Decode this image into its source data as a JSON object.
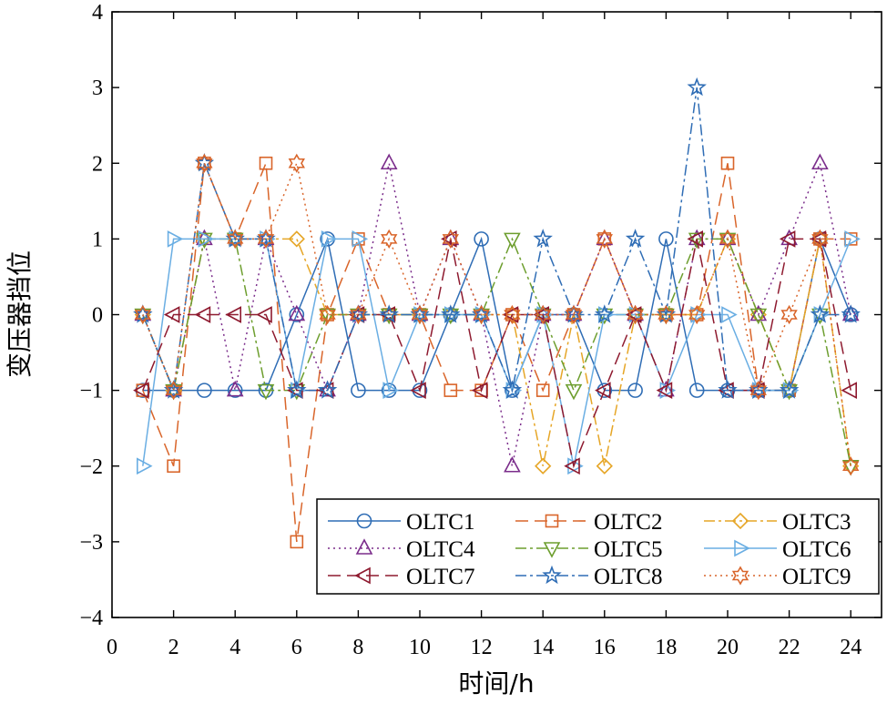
{
  "chart_data": {
    "type": "line",
    "title": "",
    "xlabel": "时间/h",
    "ylabel": "变压器挡位",
    "xlim": [
      0,
      25
    ],
    "ylim": [
      -4,
      4
    ],
    "xticks": [
      0,
      2,
      4,
      6,
      8,
      10,
      12,
      14,
      16,
      18,
      20,
      22,
      24
    ],
    "yticks": [
      -4,
      -3,
      -2,
      -1,
      0,
      1,
      2,
      3,
      4
    ],
    "legend_position": "bottom-right",
    "grid": false,
    "x": [
      1,
      2,
      3,
      4,
      5,
      6,
      7,
      8,
      9,
      10,
      11,
      12,
      13,
      14,
      15,
      16,
      17,
      18,
      19,
      20,
      21,
      22,
      23,
      24
    ],
    "series": [
      {
        "name": "OLTC1",
        "color": "#2f6db5",
        "dash": "",
        "marker": "circle",
        "values": [
          -1,
          -1,
          -1,
          -1,
          -1,
          0,
          1,
          -1,
          -1,
          -1,
          0,
          1,
          -1,
          0,
          0,
          -1,
          -1,
          1,
          -1,
          -1,
          -1,
          -1,
          1,
          0
        ]
      },
      {
        "name": "OLTC2",
        "color": "#d9652a",
        "dash": "14,7",
        "marker": "square",
        "values": [
          -1,
          -2,
          2,
          1,
          2,
          -3,
          0,
          1,
          0,
          0,
          -1,
          -1,
          0,
          -1,
          0,
          1,
          0,
          0,
          0,
          2,
          -1,
          -1,
          1,
          1
        ]
      },
      {
        "name": "OLTC3",
        "color": "#e6a627",
        "dash": "12,4,3,4",
        "marker": "diamond",
        "values": [
          0,
          -1,
          1,
          1,
          1,
          1,
          0,
          0,
          0,
          0,
          0,
          0,
          0,
          -2,
          0,
          -2,
          0,
          0,
          0,
          1,
          0,
          -1,
          1,
          -2
        ]
      },
      {
        "name": "OLTC4",
        "color": "#7b2d8b",
        "dash": "2,4",
        "marker": "triangle-up",
        "values": [
          0,
          -1,
          1,
          -1,
          1,
          0,
          -1,
          0,
          2,
          0,
          1,
          0,
          -2,
          0,
          0,
          1,
          0,
          -1,
          1,
          1,
          0,
          1,
          2,
          0
        ]
      },
      {
        "name": "OLTC5",
        "color": "#6d9e2e",
        "dash": "12,4,3,4",
        "marker": "triangle-down",
        "values": [
          0,
          -1,
          1,
          1,
          -1,
          -1,
          0,
          0,
          0,
          0,
          0,
          0,
          1,
          0,
          -1,
          0,
          0,
          0,
          1,
          1,
          0,
          -1,
          0,
          -2
        ]
      },
      {
        "name": "OLTC6",
        "color": "#6aaee3",
        "dash": "",
        "marker": "triangle-right",
        "values": [
          -2,
          1,
          1,
          1,
          1,
          -1,
          1,
          1,
          -1,
          0,
          0,
          0,
          -1,
          0,
          -2,
          0,
          0,
          -1,
          0,
          0,
          -1,
          -1,
          0,
          1
        ]
      },
      {
        "name": "OLTC7",
        "color": "#8e1a2f",
        "dash": "14,7",
        "marker": "triangle-left",
        "values": [
          -1,
          0,
          0,
          0,
          0,
          -1,
          -1,
          0,
          0,
          -1,
          1,
          -1,
          0,
          0,
          -2,
          -1,
          0,
          -1,
          1,
          -1,
          -1,
          1,
          1,
          -1
        ]
      },
      {
        "name": "OLTC8",
        "color": "#2f6db5",
        "dash": "12,4,3,4",
        "marker": "star",
        "values": [
          0,
          -1,
          2,
          1,
          1,
          -1,
          -1,
          0,
          0,
          0,
          0,
          0,
          -1,
          1,
          0,
          0,
          1,
          0,
          3,
          -1,
          -1,
          -1,
          0,
          0
        ]
      },
      {
        "name": "OLTC9",
        "color": "#d9652a",
        "dash": "2,4",
        "marker": "hexagram",
        "values": [
          0,
          -1,
          2,
          1,
          1,
          2,
          0,
          0,
          1,
          0,
          1,
          0,
          0,
          0,
          0,
          1,
          0,
          0,
          0,
          1,
          -1,
          0,
          1,
          -2
        ]
      }
    ]
  }
}
